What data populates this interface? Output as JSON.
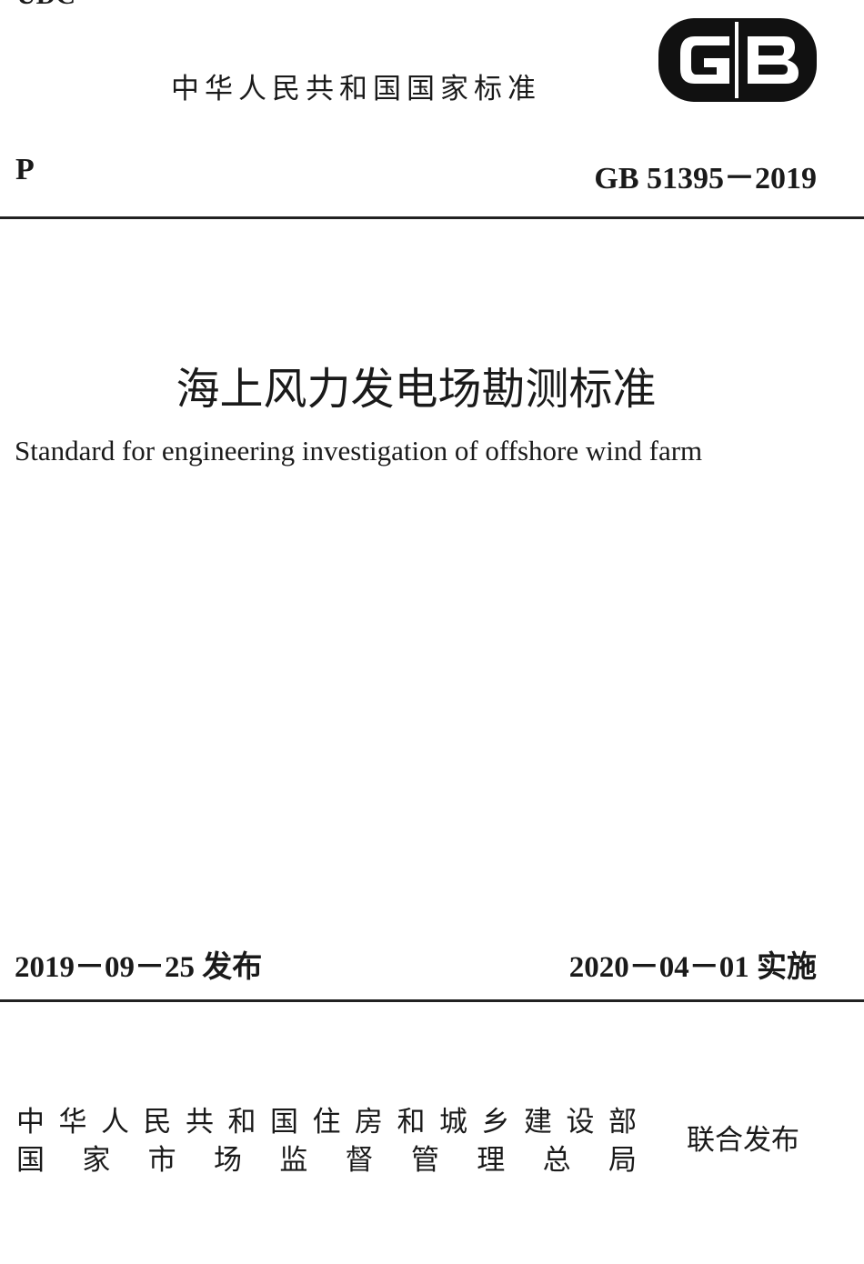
{
  "header": {
    "udc": "UDC",
    "national_standard": "中华人民共和国国家标准",
    "logo_text": "GB",
    "classification": "P",
    "standard_code": "GB 51395－2019"
  },
  "title": {
    "chinese": "海上风力发电场勘测标准",
    "english": "Standard for engineering investigation of offshore wind farm"
  },
  "dates": {
    "issue": "2019－09－25  发布",
    "implementation": "2020－04－01  实施"
  },
  "issuers": {
    "line1": [
      "中",
      "华",
      "人",
      "民",
      "共",
      "和",
      "国",
      "住",
      "房",
      "和",
      "城",
      "乡",
      "建",
      "设",
      "部"
    ],
    "line2": [
      "国",
      "家",
      "市",
      "场",
      "监",
      "督",
      "管",
      "理",
      "总",
      "局"
    ],
    "joint": "联合发布"
  }
}
